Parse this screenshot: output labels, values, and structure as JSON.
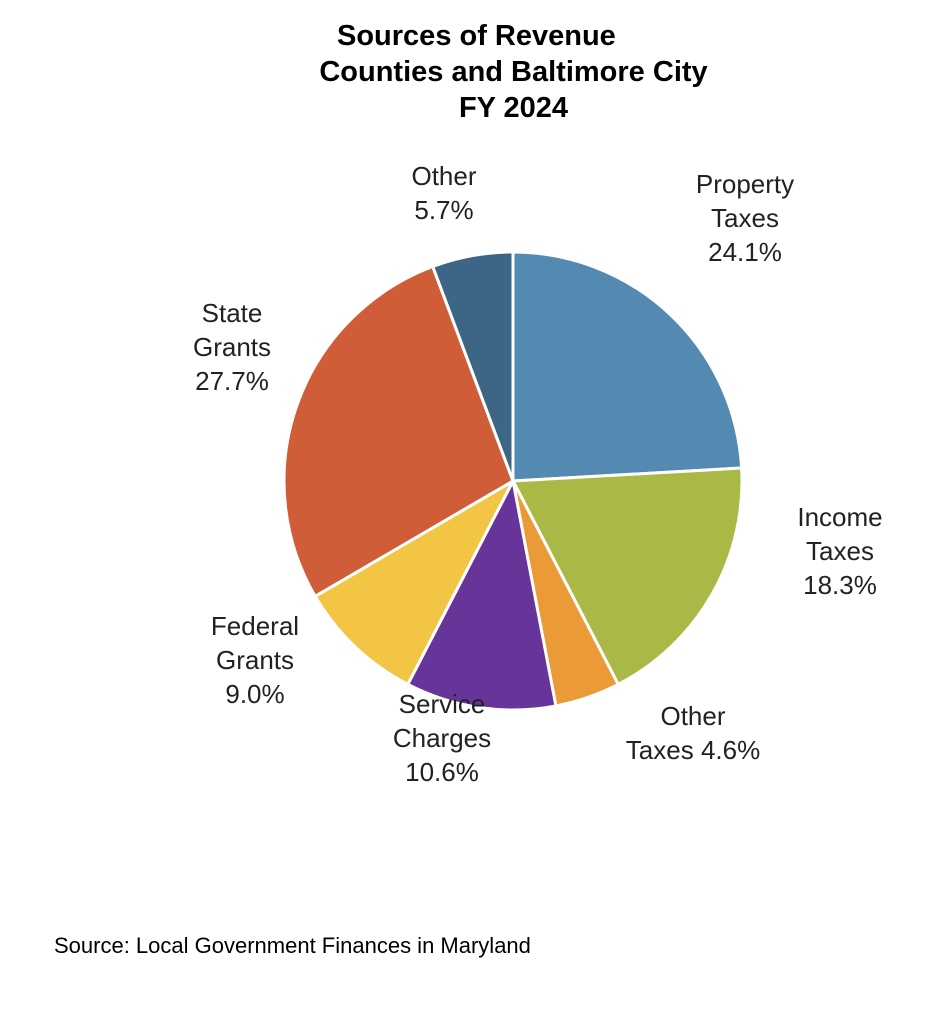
{
  "title_lines": [
    "Sources of Revenue",
    "Counties and Baltimore City",
    "FY 2024"
  ],
  "source": "Source:  Local Government Finances in Maryland",
  "chart_data": {
    "type": "pie",
    "title": "Sources of Revenue Counties and Baltimore City FY 2024",
    "unit": "%",
    "slices": [
      {
        "label_lines": [
          "Property",
          "Taxes",
          "24.1%"
        ],
        "value": 24.1,
        "color": "#548ab2"
      },
      {
        "label_lines": [
          "Income",
          "Taxes",
          "18.3%"
        ],
        "value": 18.3,
        "color": "#aab845"
      },
      {
        "label_lines": [
          "Other",
          "Taxes 4.6%"
        ],
        "value": 4.6,
        "color": "#ea9a36"
      },
      {
        "label_lines": [
          "Service",
          "Charges",
          "10.6%"
        ],
        "value": 10.6,
        "color": "#67349a"
      },
      {
        "label_lines": [
          "Federal",
          "Grants",
          "9.0%"
        ],
        "value": 9.0,
        "color": "#f2c644"
      },
      {
        "label_lines": [
          "State",
          "Grants",
          "27.7%"
        ],
        "value": 27.7,
        "color": "#cf5d38"
      },
      {
        "label_lines": [
          "Other",
          "5.7%"
        ],
        "value": 5.7,
        "color": "#3d6686"
      }
    ]
  }
}
